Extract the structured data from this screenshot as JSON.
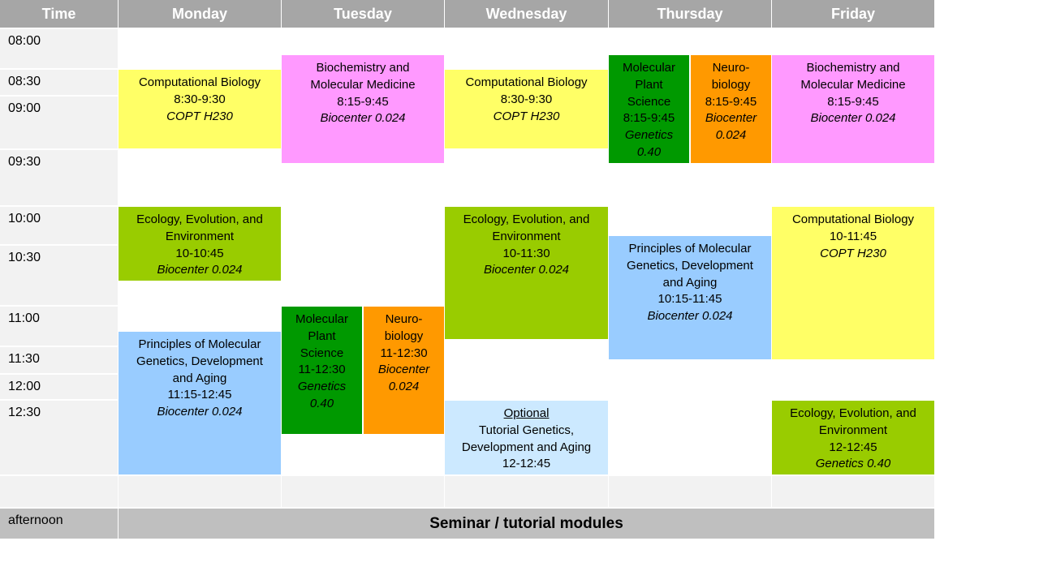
{
  "headers": [
    "Time",
    "Monday",
    "Tuesday",
    "Wednesday",
    "Thursday",
    "Friday"
  ],
  "times": [
    "08:00",
    "08:30",
    "09:00",
    "09:30",
    "10:00",
    "10:30",
    "11:00",
    "11:30",
    "12:00",
    "12:30"
  ],
  "footer": {
    "label": "afternoon",
    "seminar": "Seminar / tutorial modules"
  },
  "events": {
    "mon_cb": [
      "Computational Biology",
      "8:30-9:30",
      "COPT H230"
    ],
    "mon_eee": [
      "Ecology, Evolution, and",
      "Environment",
      "10-10:45",
      "Biocenter 0.024"
    ],
    "mon_pmg": [
      "Principles of Molecular",
      "Genetics, Development",
      "and Aging",
      "11:15-12:45",
      "Biocenter 0.024"
    ],
    "tue_bmm": [
      "Biochemistry and",
      "Molecular Medicine",
      "8:15-9:45",
      "Biocenter 0.024"
    ],
    "tue_mps": [
      "Molecular",
      "Plant",
      "Science",
      "11-12:30",
      "Genetics",
      "0.40"
    ],
    "tue_neuro": [
      "Neuro-",
      "biology",
      "11-12:30",
      "Biocenter",
      "0.024"
    ],
    "wed_cb": [
      "Computational Biology",
      "8:30-9:30",
      "COPT H230"
    ],
    "wed_eee": [
      "Ecology, Evolution, and",
      "Environment",
      "10-11:30",
      "Biocenter 0.024"
    ],
    "wed_tut": [
      "Optional",
      "Tutorial Genetics,",
      "Development and Aging",
      "12-12:45"
    ],
    "thu_mps": [
      "Molecular",
      "Plant",
      "Science",
      "8:15-9:45",
      "Genetics",
      "0.40"
    ],
    "thu_neuro": [
      "Neuro-",
      "biology",
      "8:15-9:45",
      "Biocenter",
      "0.024"
    ],
    "thu_pmg": [
      "Principles of Molecular",
      "Genetics, Development",
      "and Aging",
      "10:15-11:45",
      "Biocenter 0.024"
    ],
    "fri_bmm": [
      "Biochemistry and",
      "Molecular Medicine",
      "8:15-9:45",
      "Biocenter 0.024"
    ],
    "fri_cb": [
      "Computational Biology",
      "10-11:45",
      "COPT H230"
    ],
    "fri_eee": [
      "Ecology, Evolution, and",
      "Environment",
      "12-12:45",
      "Genetics 0.40"
    ]
  }
}
